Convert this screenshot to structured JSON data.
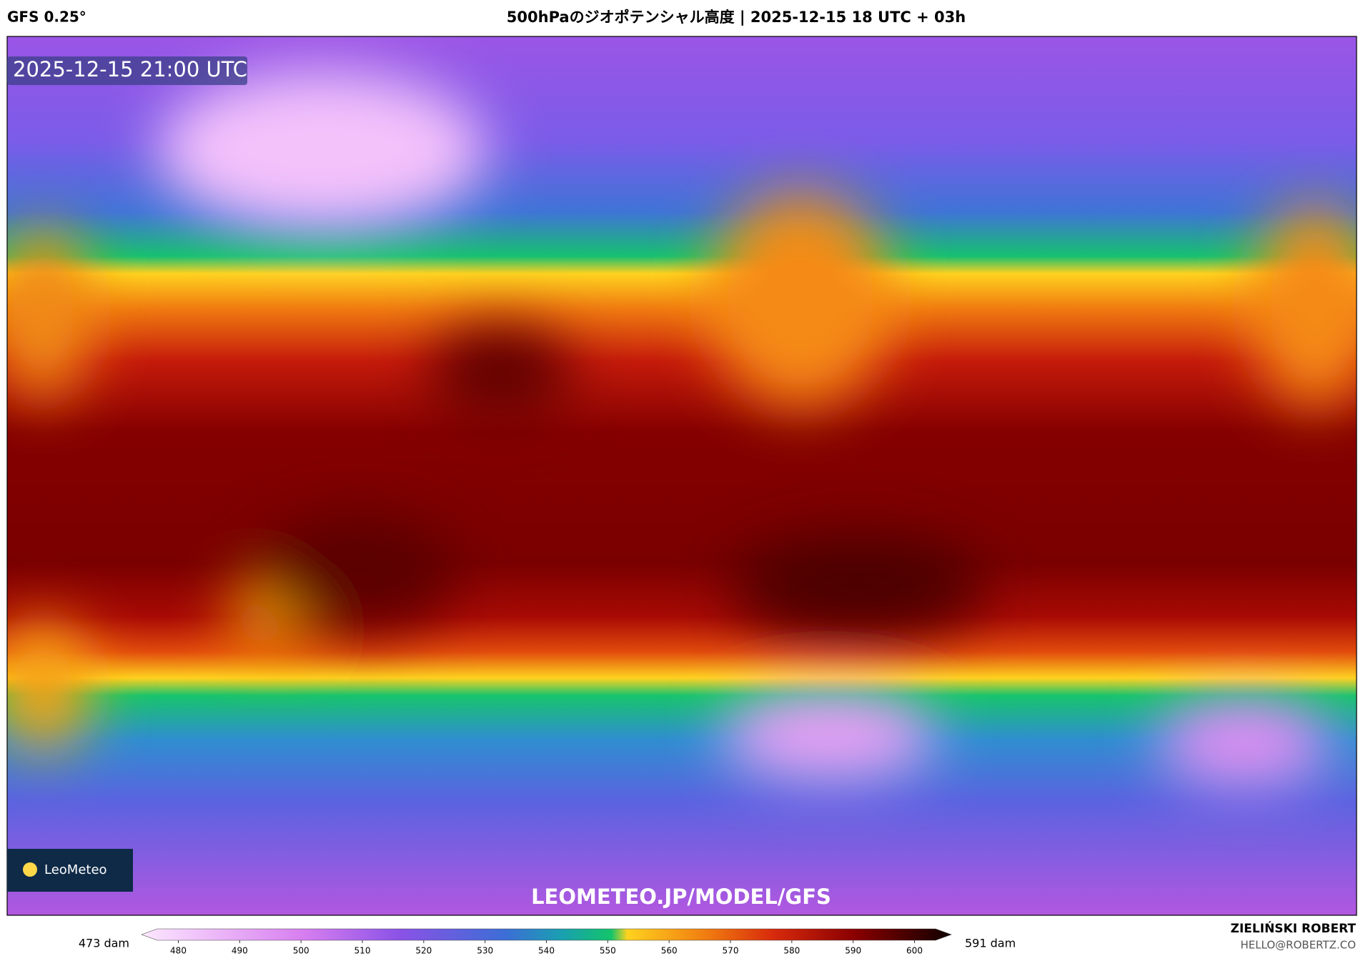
{
  "header": {
    "model": "GFS 0.25°",
    "title": "500hPaのジオポテンシャル高度 | 2025-12-15 18 UTC + 03h"
  },
  "map": {
    "timestamp": "2025-12-15 21:00 UTC",
    "logo": "LeoMeteo",
    "watermark": "LEOMETEO.JP/MODEL/GFS"
  },
  "colorbar": {
    "min_label": "473 dam",
    "max_label": "591 dam",
    "lim": [
      474,
      606
    ],
    "ticks": [
      480,
      490,
      500,
      510,
      520,
      530,
      540,
      550,
      560,
      570,
      580,
      590,
      600
    ]
  },
  "footer": {
    "author": "ZIELIŃSKI ROBERT",
    "email": "HELLO@ROBERTZ.CO"
  }
}
